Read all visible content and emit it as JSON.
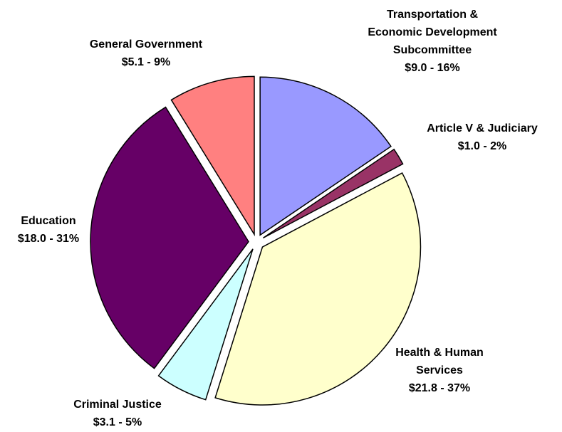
{
  "chart_data": {
    "type": "pie",
    "categories": [
      "Transportation & Economic Development Subcommittee",
      "Article V & Judiciary",
      "Health & Human Services",
      "Criminal Justice",
      "Education",
      "General Government"
    ],
    "values": [
      9.0,
      1.0,
      21.8,
      3.1,
      18.0,
      5.1
    ],
    "value_labels": [
      "$9.0 - 16%",
      "$1.0 - 2%",
      "$21.8 - 37%",
      "$3.1 - 5%",
      "$18.0 - 31%",
      "$5.1 - 9%"
    ],
    "colors": [
      "#9999ff",
      "#993366",
      "#ffffcc",
      "#ccffff",
      "#660066",
      "#ff8080"
    ]
  }
}
